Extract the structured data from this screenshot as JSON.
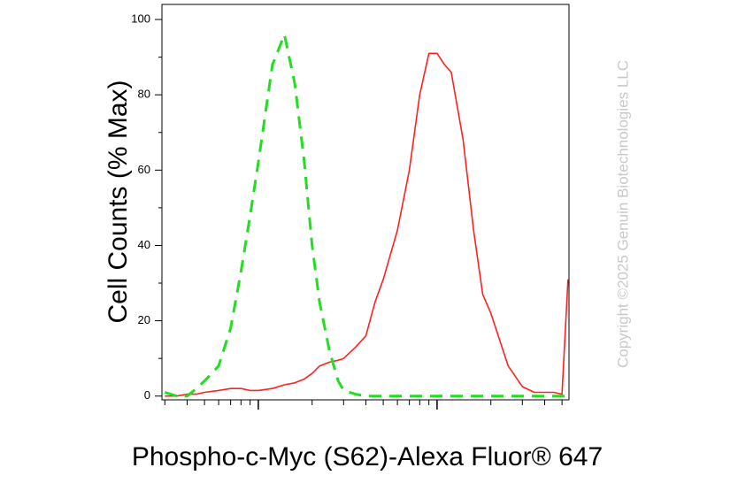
{
  "chart_data": {
    "type": "line",
    "y_label": "Cell Counts (% Max)",
    "x_label": "Phospho-c-Myc (S62)-Alexa Fluor® 647",
    "annotation": "Copyright ©2025 Genuin Biotechnologies LLC",
    "x_log": true,
    "xlim": [
      28.9,
      5470
    ],
    "xticks": [
      100,
      1000
    ],
    "xminorticks": [
      30,
      40,
      50,
      60,
      70,
      80,
      90,
      200,
      300,
      400,
      500,
      600,
      700,
      800,
      900,
      2000,
      3000,
      4000,
      5000
    ],
    "ylim": [
      -1,
      104
    ],
    "yticks": [
      0,
      20,
      40,
      60,
      80,
      100
    ],
    "yminorticks": [
      10,
      30,
      50,
      70,
      90
    ],
    "x": [
      30,
      35,
      40,
      45,
      50,
      60,
      70,
      80,
      90,
      100,
      120,
      140,
      160,
      180,
      200,
      220,
      250,
      280,
      300,
      350,
      400,
      450,
      500,
      600,
      700,
      800,
      900,
      1000,
      1100,
      1200,
      1400,
      1600,
      1800,
      2000,
      2500,
      3000,
      3500,
      4000,
      4500,
      5000,
      5400
    ],
    "series": [
      {
        "color": "#ff2020",
        "dashed": false,
        "values": [
          0,
          0,
          0.5,
          0.5,
          1,
          1.5,
          2,
          2,
          1.5,
          1.5,
          2,
          3,
          3.5,
          4.5,
          6,
          8,
          9,
          9.5,
          10,
          13,
          16,
          25,
          31,
          44,
          60,
          80,
          91,
          91,
          88,
          86,
          68,
          44,
          27,
          22,
          8,
          2.5,
          1,
          1,
          1,
          0.5,
          31
        ]
      },
      {
        "color": "#22dd22",
        "dashed": true,
        "values": [
          1,
          0,
          0,
          2,
          4,
          8,
          18,
          33,
          48,
          62,
          88,
          96,
          83,
          63,
          40,
          25,
          12,
          4,
          1.5,
          0.5,
          0,
          0,
          0,
          0,
          0,
          0,
          0,
          0,
          0,
          0,
          0,
          0,
          0,
          0,
          0,
          0,
          0,
          0,
          0,
          0,
          0
        ]
      }
    ]
  }
}
